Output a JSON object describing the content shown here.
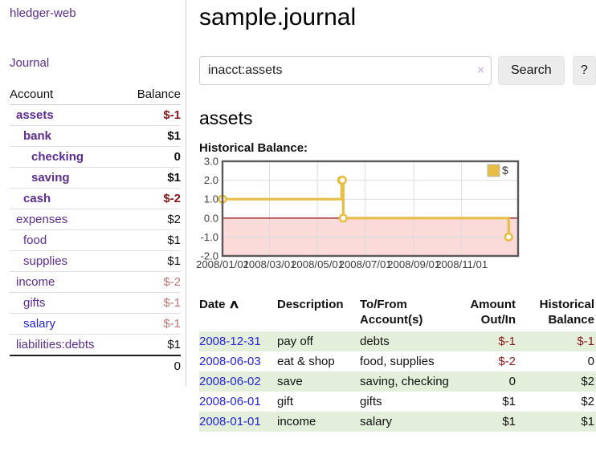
{
  "app_title": "hledger-web",
  "colors": {
    "purple": "#5c2d91",
    "blue": "#2424d4",
    "negative": "#8a1717",
    "negative_soft": "#bd7575",
    "row_green": "#e3efda",
    "chart_line": "#e7bd45",
    "chart_zero_line": "#9c1b1b",
    "chart_negative_region": "#fbdada"
  },
  "sidebar": {
    "journal_link": "Journal",
    "account_header": "Account",
    "balance_header": "Balance",
    "accounts": [
      {
        "name": "assets",
        "balance": "$-1",
        "level": 1,
        "bold": true,
        "name_style": "purple",
        "balance_style": "negative"
      },
      {
        "name": "bank",
        "balance": "$1",
        "level": 2,
        "bold": true,
        "name_style": "purple",
        "balance_style": "normal"
      },
      {
        "name": "checking",
        "balance": "0",
        "level": 3,
        "bold": true,
        "name_style": "purple",
        "balance_style": "normal"
      },
      {
        "name": "saving",
        "balance": "$1",
        "level": 3,
        "bold": true,
        "name_style": "purple",
        "balance_style": "normal"
      },
      {
        "name": "cash",
        "balance": "$-2",
        "level": 2,
        "bold": true,
        "name_style": "purple",
        "balance_style": "negative"
      },
      {
        "name": "expenses",
        "balance": "$2",
        "level": 1,
        "bold": false,
        "name_style": "purple",
        "balance_style": "normal"
      },
      {
        "name": "food",
        "balance": "$1",
        "level": 2,
        "bold": false,
        "name_style": "purple",
        "balance_style": "normal"
      },
      {
        "name": "supplies",
        "balance": "$1",
        "level": 2,
        "bold": false,
        "name_style": "purple",
        "balance_style": "normal"
      },
      {
        "name": "income",
        "balance": "$-2",
        "level": 1,
        "bold": false,
        "name_style": "purple",
        "balance_style": "negative_soft"
      },
      {
        "name": "gifts",
        "balance": "$-1",
        "level": 2,
        "bold": false,
        "name_style": "purple",
        "balance_style": "negative_soft"
      },
      {
        "name": "salary",
        "balance": "$-1",
        "level": 2,
        "bold": false,
        "name_style": "blue",
        "balance_style": "negative_soft"
      },
      {
        "name": "liabilities:debts",
        "balance": "$1",
        "level": 1,
        "bold": false,
        "name_style": "purple",
        "balance_style": "normal"
      }
    ],
    "total": "0"
  },
  "main": {
    "title": "sample.journal",
    "search": {
      "value": "inacct:assets",
      "clear": "×",
      "search_button": "Search",
      "help_button": "?"
    },
    "heading": "assets",
    "chart_title": "Historical Balance:"
  },
  "chart_data": {
    "type": "line",
    "step": "post",
    "title": "Historical Balance:",
    "series": [
      {
        "name": "$",
        "points": [
          [
            "2008-01-01",
            1
          ],
          [
            "2008-06-01",
            2
          ],
          [
            "2008-06-02",
            2
          ],
          [
            "2008-06-03",
            0
          ],
          [
            "2008-12-31",
            -1
          ]
        ]
      }
    ],
    "x_tick_labels": [
      "2008/01/01",
      "2008/03/01",
      "2008/05/01",
      "2008/07/01",
      "2008/09/01",
      "2008/11/01"
    ],
    "y_ticks": [
      "3.0",
      "2.0",
      "1.0",
      "0.0",
      "-1.0",
      "-2.0"
    ],
    "ylim": [
      -2,
      3
    ],
    "grid": true,
    "legend": {
      "position": "top-right",
      "entries": [
        "$"
      ]
    },
    "negative_region_below_zero": true
  },
  "register": {
    "headers": {
      "date": "Date",
      "sort_icon": "∧",
      "description": "Description",
      "accounts": "To/From Account(s)",
      "amount": "Amount Out/In",
      "balance": "Historical Balance"
    },
    "rows": [
      {
        "date": "2008-12-31",
        "description": "pay off",
        "accounts": "debts",
        "amount": "$-1",
        "amount_negative": true,
        "balance": "$-1",
        "balance_negative": true
      },
      {
        "date": "2008-06-03",
        "description": "eat & shop",
        "accounts": "food, supplies",
        "amount": "$-2",
        "amount_negative": true,
        "balance": "0",
        "balance_negative": false
      },
      {
        "date": "2008-06-02",
        "description": "save",
        "accounts": "saving, checking",
        "amount": "0",
        "amount_negative": false,
        "balance": "$2",
        "balance_negative": false
      },
      {
        "date": "2008-06-01",
        "description": "gift",
        "accounts": "gifts",
        "amount": "$1",
        "amount_negative": false,
        "balance": "$2",
        "balance_negative": false
      },
      {
        "date": "2008-01-01",
        "description": "income",
        "accounts": "salary",
        "amount": "$1",
        "amount_negative": false,
        "balance": "$1",
        "balance_negative": false
      }
    ]
  }
}
